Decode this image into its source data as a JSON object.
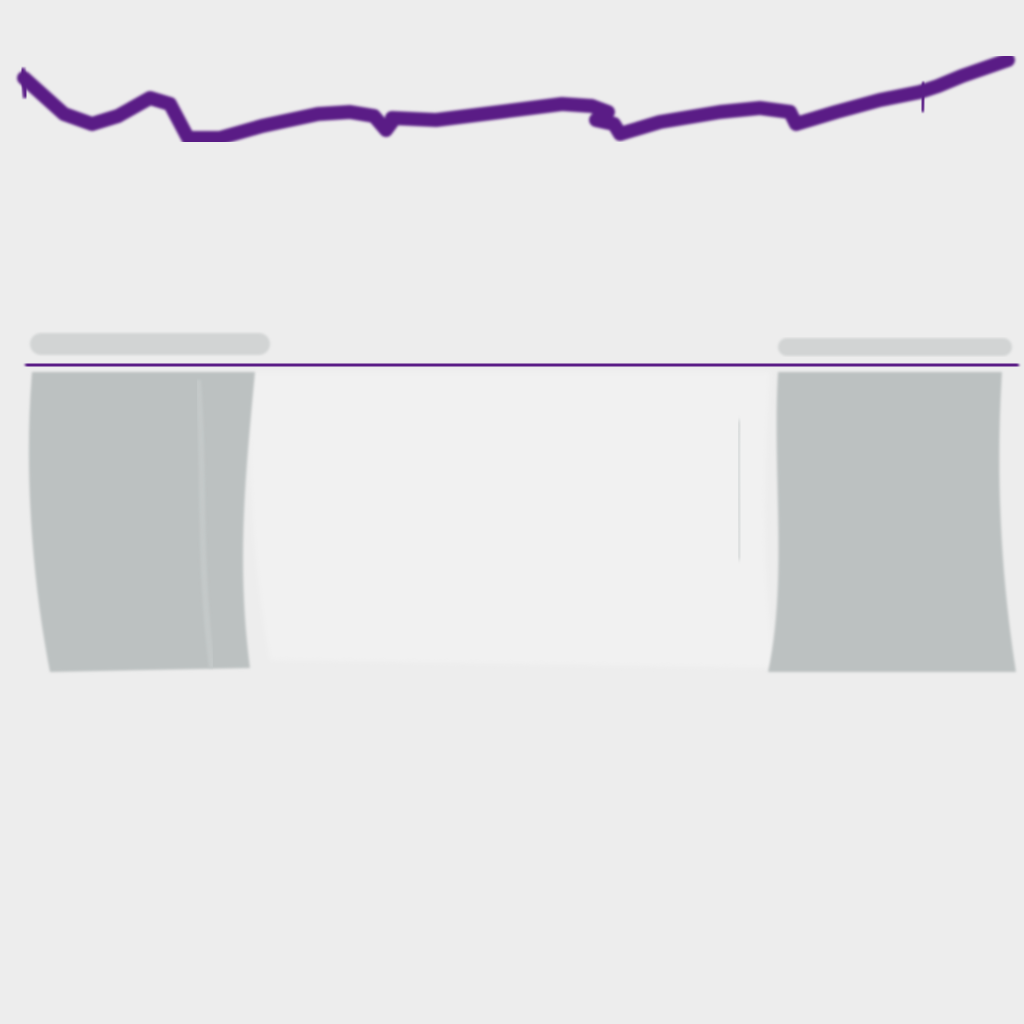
{
  "colors": {
    "background": "#ededed",
    "stroke": "#5a1f86",
    "panel": "#bcc1c1",
    "panel_highlight": "#f2f2f2"
  },
  "scene": {
    "description_icon": "abstract-painted-shapes"
  }
}
